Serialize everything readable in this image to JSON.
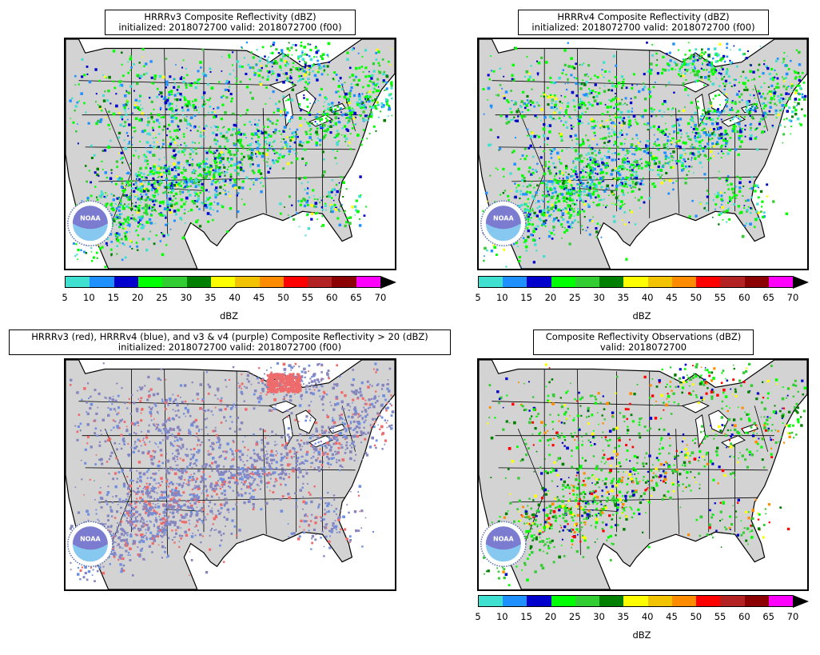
{
  "panels": [
    {
      "id": "p1",
      "title_line1": "HRRRv3 Composite Reflectivity (dBZ)",
      "title_line2": "initialized: 2018072700 valid: 2018072700 (f00)",
      "mode": "refl",
      "seed": 11,
      "has_colorbar": true
    },
    {
      "id": "p2",
      "title_line1": "HRRRv4 Composite Reflectivity (dBZ)",
      "title_line2": "initialized: 2018072700 valid: 2018072700 (f00)",
      "mode": "refl",
      "seed": 27,
      "has_colorbar": true
    },
    {
      "id": "p3",
      "title_line1": "HRRRv3 (red), HRRRv4 (blue), and v3 & v4 (purple) Composite Reflectivity > 20 (dBZ)",
      "title_line2": "initialized: 2018072700 valid: 2018072700 (f00)",
      "mode": "overlap",
      "seed": 43,
      "has_colorbar": false
    },
    {
      "id": "p4",
      "title_line1": "Composite Reflectivity Observations (dBZ)",
      "title_line2": "valid: 2018072700",
      "mode": "obs",
      "seed": 59,
      "has_colorbar": true
    }
  ],
  "colorbar": {
    "label": "dBZ",
    "ticks": [
      "5",
      "10",
      "15",
      "20",
      "25",
      "30",
      "35",
      "40",
      "45",
      "50",
      "55",
      "60",
      "65",
      "70"
    ],
    "colors": [
      "#40e0d0",
      "#1e90ff",
      "#0000cd",
      "#00ff00",
      "#32cd32",
      "#008000",
      "#ffff00",
      "#f2c300",
      "#ff8c00",
      "#ff0000",
      "#b22222",
      "#8b0000",
      "#ff00ff"
    ],
    "extend": "max"
  },
  "overlap_colors": {
    "v3": "#ee6b6b",
    "v4": "#6f8fe0",
    "both": "#8585c0"
  },
  "map_colors": {
    "land": "#d3d3d3",
    "water": "#ffffff",
    "border": "#000000"
  },
  "logo": {
    "text": "NOAA",
    "ring_text": "NATIONAL OCEANIC AND ATMOSPHERIC ADMINISTRATION"
  }
}
